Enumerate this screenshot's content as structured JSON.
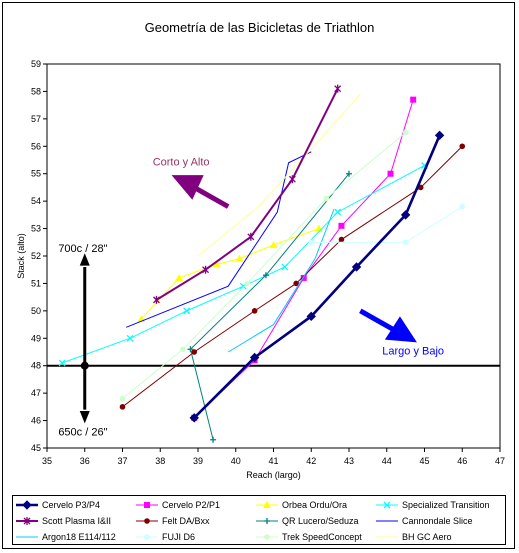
{
  "chart_data": {
    "type": "line",
    "title": "Geometría de las Bicicletas de Triathlon",
    "xlabel": "Reach (largo)",
    "ylabel": "Stack (alto)",
    "xlim": [
      35,
      47
    ],
    "ylim": [
      45,
      59
    ],
    "xticks": [
      35,
      36,
      37,
      38,
      39,
      40,
      41,
      42,
      43,
      44,
      45,
      46,
      47
    ],
    "yticks": [
      45,
      46,
      47,
      48,
      49,
      50,
      51,
      52,
      53,
      54,
      55,
      56,
      57,
      58,
      59
    ],
    "grid": false,
    "legend_position": "bottom",
    "series": [
      {
        "name": "Cervelo P3/P4",
        "color": "#000080",
        "marker": "diamond",
        "line_width": 2.6,
        "x": [
          38.9,
          40.5,
          42.0,
          43.2,
          44.5,
          45.4
        ],
        "y": [
          46.1,
          48.3,
          49.8,
          51.6,
          53.5,
          56.4
        ]
      },
      {
        "name": "Cervelo P2/P1",
        "color": "#FF00FF",
        "marker": "square",
        "line_width": 1,
        "x": [
          38.9,
          40.5,
          41.8,
          42.8,
          44.1,
          44.7
        ],
        "y": [
          46.1,
          48.2,
          51.2,
          53.1,
          55.0,
          57.7
        ]
      },
      {
        "name": "Orbea Ordu/Ora",
        "color": "#FFFF00",
        "marker": "triangle",
        "line_width": 1,
        "x": [
          37.5,
          38.5,
          39.5,
          40.1,
          41.0,
          42.2
        ],
        "y": [
          49.7,
          51.2,
          51.7,
          51.9,
          52.4,
          53.0
        ]
      },
      {
        "name": "Specialized Transition",
        "color": "#00FFFF",
        "marker": "x",
        "line_width": 1,
        "x": [
          35.4,
          37.2,
          38.7,
          40.2,
          41.3,
          42.7,
          45.0
        ],
        "y": [
          48.1,
          49.0,
          50.0,
          50.9,
          51.6,
          53.6,
          55.3
        ]
      },
      {
        "name": "Scott Plasma I&II",
        "color": "#800080",
        "marker": "star",
        "line_width": 2,
        "x": [
          37.9,
          39.2,
          40.4,
          41.5,
          42.7
        ],
        "y": [
          50.4,
          51.5,
          52.7,
          54.8,
          58.1
        ]
      },
      {
        "name": "Felt DA/Bxx",
        "color": "#800000",
        "marker": "circle",
        "line_width": 1,
        "x": [
          37.0,
          38.9,
          40.5,
          41.6,
          42.8,
          44.9,
          46.0
        ],
        "y": [
          46.5,
          48.5,
          50.0,
          51.0,
          52.6,
          54.5,
          56.0
        ]
      },
      {
        "name": "QR Lucero/Seduza",
        "color": "#008080",
        "marker": "plus",
        "line_width": 1,
        "x": [
          39.4,
          38.8,
          40.8,
          43.0
        ],
        "y": [
          45.3,
          48.6,
          51.3,
          55.0
        ]
      },
      {
        "name": "Cannondale Slice",
        "color": "#0000FF",
        "marker": "none",
        "line_width": 1,
        "x": [
          37.1,
          39.8,
          41.1,
          41.4,
          42.0
        ],
        "y": [
          49.4,
          50.9,
          53.6,
          55.4,
          55.8
        ]
      },
      {
        "name": "Argon18 E114/112",
        "color": "#00CCFF",
        "marker": "none",
        "line_width": 1,
        "x": [
          39.8,
          41.0,
          42.1,
          42.6
        ],
        "y": [
          48.5,
          49.5,
          51.9,
          53.7
        ]
      },
      {
        "name": "FUJI D6",
        "color": "#CCFFFF",
        "marker": "circle",
        "line_width": 1,
        "x": [
          42.0,
          44.5,
          46.0
        ],
        "y": [
          52.5,
          52.5,
          53.8
        ]
      },
      {
        "name": "Trek SpeedConcept",
        "color": "#CCFFCC",
        "marker": "circle",
        "line_width": 1,
        "x": [
          37.0,
          38.6,
          40.3,
          42.4,
          44.5
        ],
        "y": [
          46.8,
          48.6,
          51.0,
          54.1,
          56.5
        ]
      },
      {
        "name": "BH GC Aero",
        "color": "#FFFF99",
        "marker": "none",
        "line_width": 1,
        "x": [
          39.0,
          40.6,
          42.0,
          43.3
        ],
        "y": [
          52.0,
          53.8,
          55.9,
          57.9
        ]
      }
    ],
    "reference_line": {
      "y": 48
    },
    "annotations": {
      "top_left": "Corto y Alto",
      "bottom_right": "Largo y Bajo",
      "size_top": "700c / 28\"",
      "size_bottom": "650c / 26\""
    }
  }
}
